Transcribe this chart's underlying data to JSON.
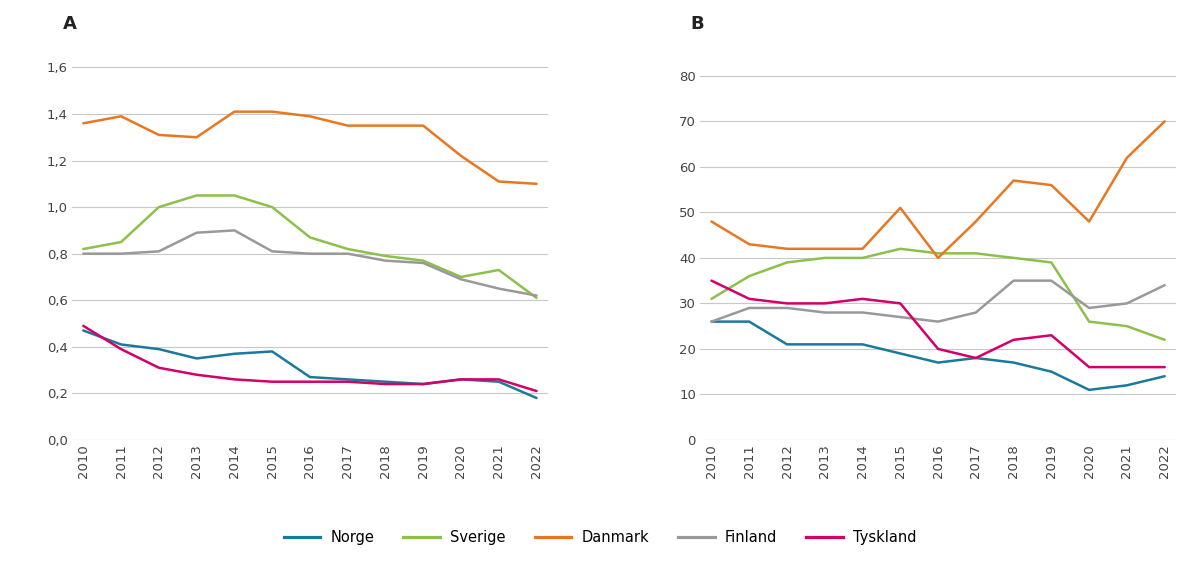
{
  "years": [
    2010,
    2011,
    2012,
    2013,
    2014,
    2015,
    2016,
    2017,
    2018,
    2019,
    2020,
    2021,
    2022
  ],
  "panel_A": {
    "Norge": [
      0.47,
      0.41,
      0.39,
      0.35,
      0.37,
      0.38,
      0.27,
      0.26,
      0.25,
      0.24,
      0.26,
      0.25,
      0.18
    ],
    "Sverige": [
      0.82,
      0.85,
      1.0,
      1.05,
      1.05,
      1.0,
      0.87,
      0.82,
      0.79,
      0.77,
      0.7,
      0.73,
      0.61
    ],
    "Danmark": [
      1.36,
      1.39,
      1.31,
      1.3,
      1.41,
      1.41,
      1.39,
      1.35,
      1.35,
      1.35,
      1.22,
      1.11,
      1.1
    ],
    "Finland": [
      0.8,
      0.8,
      0.81,
      0.89,
      0.9,
      0.81,
      0.8,
      0.8,
      0.77,
      0.76,
      0.69,
      0.65,
      0.62
    ],
    "Tyskland": [
      0.49,
      0.39,
      0.31,
      0.28,
      0.26,
      0.25,
      0.25,
      0.25,
      0.24,
      0.24,
      0.26,
      0.26,
      0.21
    ]
  },
  "panel_B": {
    "Norge": [
      26,
      26,
      21,
      21,
      21,
      19,
      17,
      18,
      17,
      15,
      11,
      12,
      14
    ],
    "Sverige": [
      31,
      36,
      39,
      40,
      40,
      42,
      41,
      41,
      40,
      39,
      26,
      25,
      22
    ],
    "Danmark": [
      48,
      43,
      42,
      42,
      42,
      51,
      40,
      48,
      57,
      56,
      48,
      62,
      70
    ],
    "Finland": [
      26,
      29,
      29,
      28,
      28,
      27,
      26,
      28,
      35,
      35,
      29,
      30,
      34
    ],
    "Tyskland": [
      35,
      31,
      30,
      30,
      31,
      30,
      20,
      18,
      22,
      23,
      16,
      16,
      16
    ]
  },
  "colors": {
    "Norge": "#1a7a9a",
    "Sverige": "#8dc04b",
    "Danmark": "#e87722",
    "Finland": "#999999",
    "Tyskland": "#d4006a"
  },
  "panel_A_ylim": [
    0.0,
    1.72
  ],
  "panel_A_yticks": [
    0.0,
    0.2,
    0.4,
    0.6,
    0.8,
    1.0,
    1.2,
    1.4,
    1.6
  ],
  "panel_A_yticklabels": [
    "0,0",
    "0,2",
    "0,4",
    "0,6",
    "0,8",
    "1,0",
    "1,2",
    "1,4",
    "1,6"
  ],
  "panel_B_ylim": [
    0,
    88
  ],
  "panel_B_yticks": [
    0,
    10,
    20,
    30,
    40,
    50,
    60,
    70,
    80
  ],
  "panel_B_yticklabels": [
    "0",
    "10",
    "20",
    "30",
    "40",
    "50",
    "60",
    "70",
    "80"
  ],
  "legend_labels": [
    "Norge",
    "Sverige",
    "Danmark",
    "Finland",
    "Tyskland"
  ],
  "label_A": "A",
  "label_B": "B",
  "linewidth": 1.8,
  "background_color": "#ffffff",
  "grid_color": "#c8c8c8",
  "tick_label_color": "#444444",
  "tick_label_fontsize": 9.5
}
